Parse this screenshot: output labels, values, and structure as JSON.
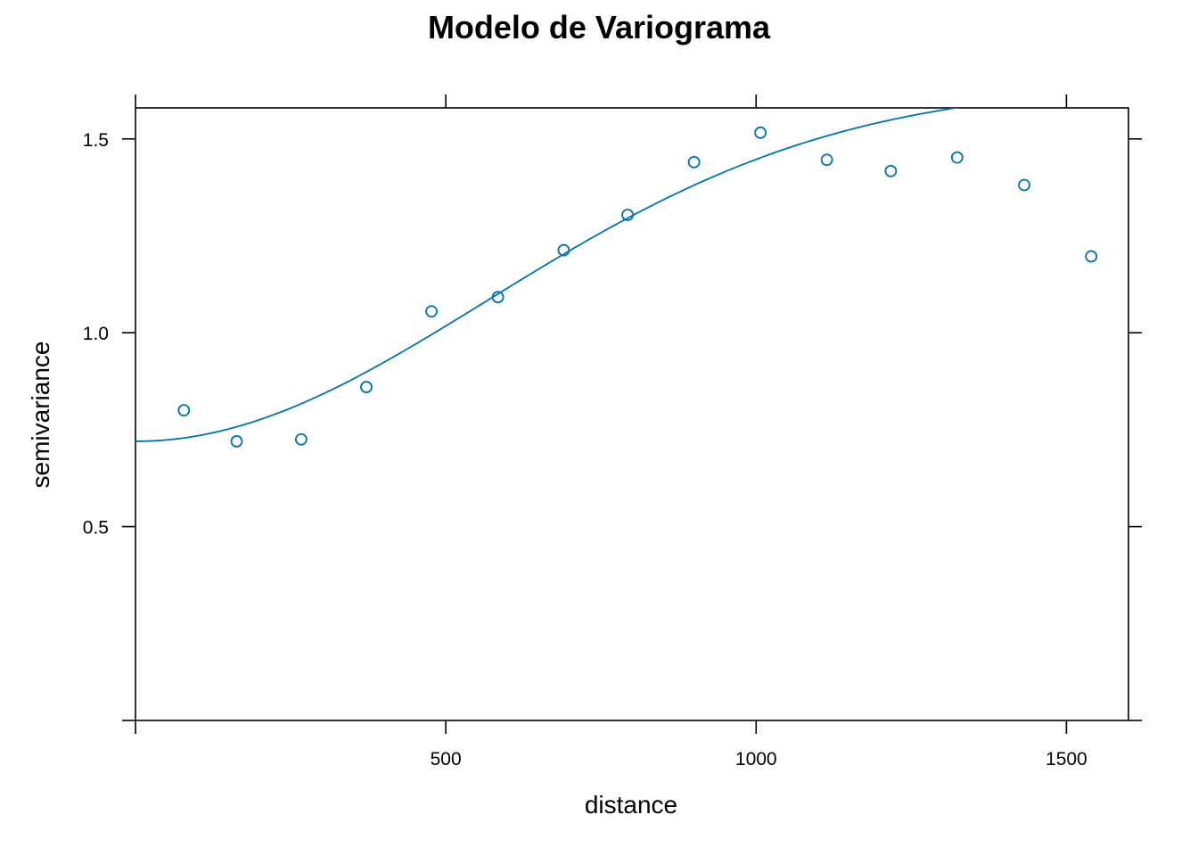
{
  "chart_data": {
    "type": "scatter",
    "title": "Modelo de Variograma",
    "xlabel": "distance",
    "ylabel": "semivariance",
    "xlim": [
      0,
      1600
    ],
    "ylim": [
      0,
      1.58
    ],
    "grid": false,
    "xticks": [
      {
        "value": 500,
        "label": "500"
      },
      {
        "value": 1000,
        "label": "1000"
      },
      {
        "value": 1500,
        "label": "1500"
      }
    ],
    "yticks": [
      {
        "value": 0.5,
        "label": "0.5"
      },
      {
        "value": 1.0,
        "label": "1.0"
      },
      {
        "value": 1.5,
        "label": "1.5"
      }
    ],
    "color": "#0072B2",
    "series": [
      {
        "kind": "points",
        "x": [
          78,
          163,
          267,
          372,
          477,
          584,
          690,
          793,
          900,
          1007,
          1114,
          1217,
          1324,
          1432,
          1540
        ],
        "y": [
          0.8,
          0.72,
          0.725,
          0.86,
          1.055,
          1.092,
          1.213,
          1.304,
          1.44,
          1.516,
          1.446,
          1.417,
          1.452,
          1.381,
          1.197
        ]
      },
      {
        "kind": "model",
        "model": "Gau",
        "nugget": 0.72,
        "psill": 0.92,
        "range": 800
      }
    ]
  }
}
